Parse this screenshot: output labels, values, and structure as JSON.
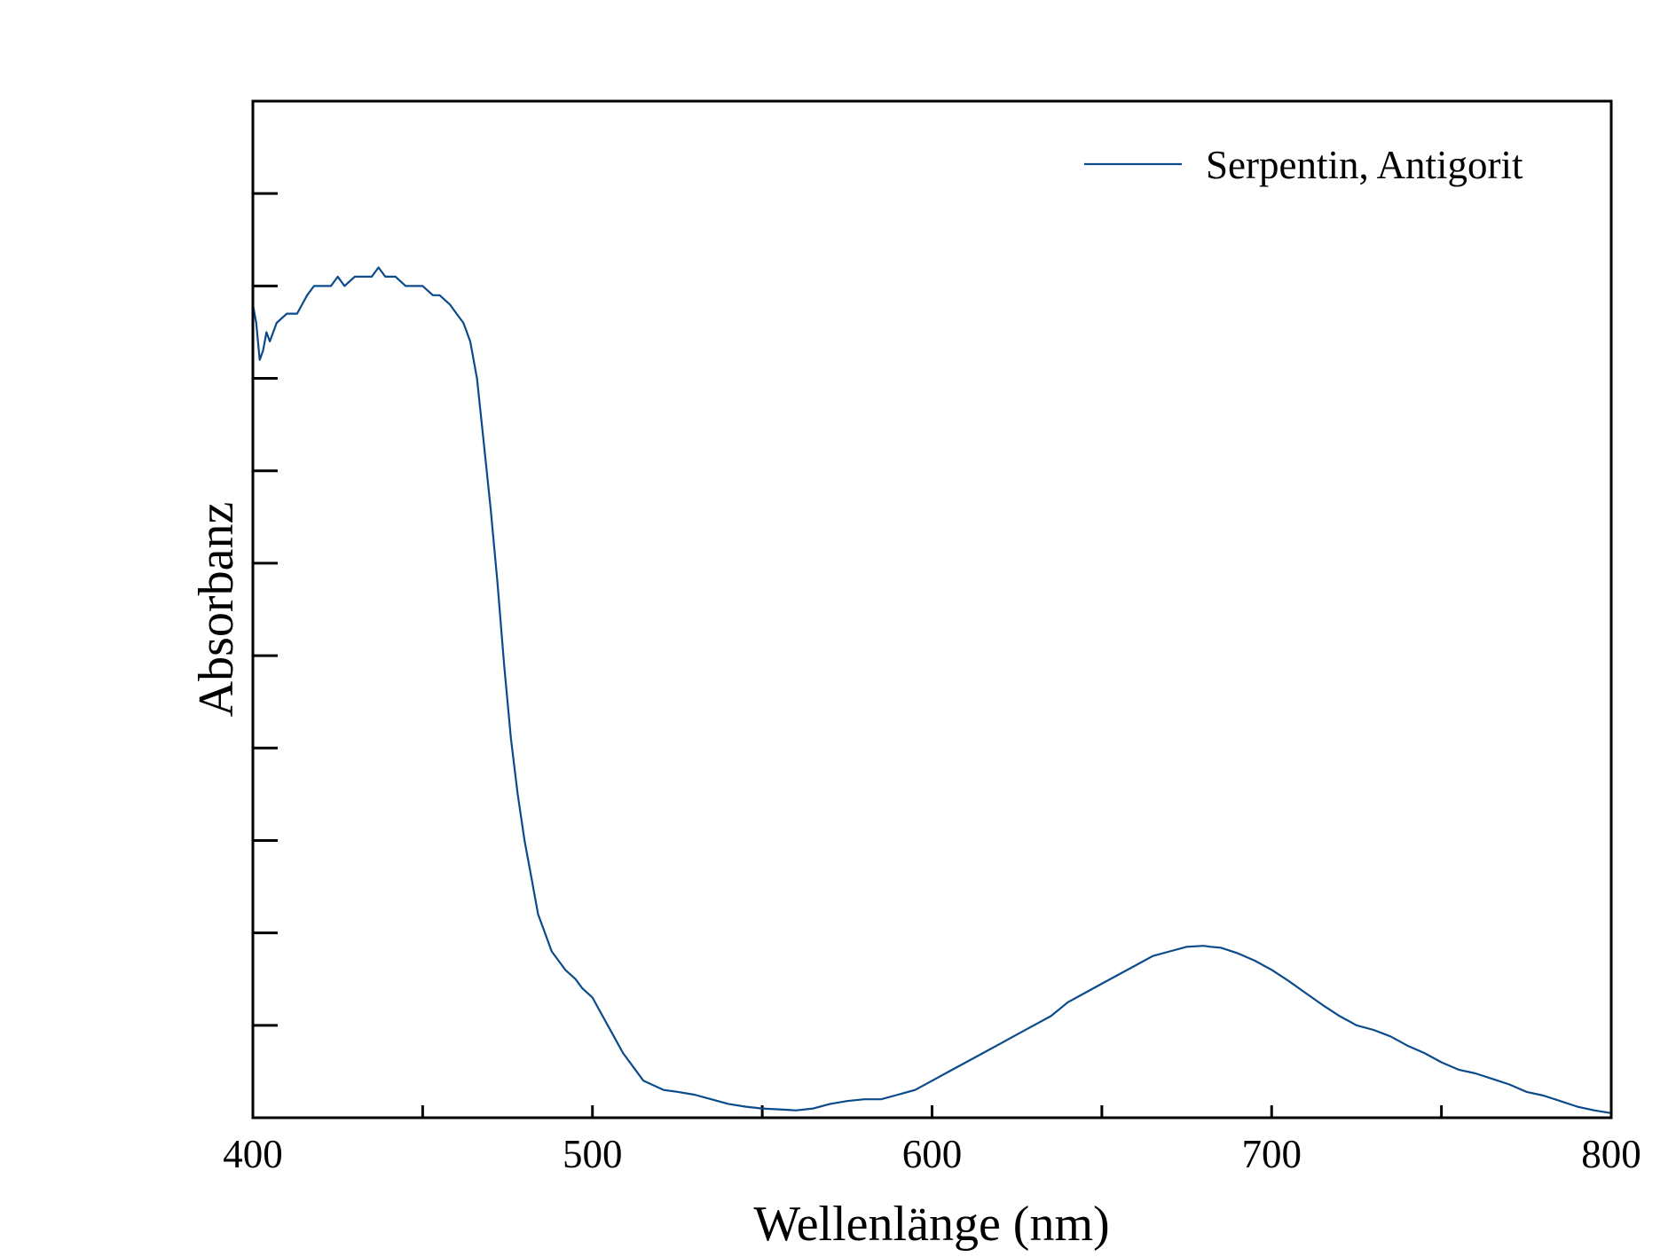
{
  "chart_data": {
    "type": "line",
    "title": "",
    "xlabel": "Wellenlänge (nm)",
    "ylabel": "Absorbanz",
    "xlim": [
      400,
      800
    ],
    "ylim": [
      0,
      1.1
    ],
    "x_ticks": [
      400,
      500,
      600,
      700,
      800
    ],
    "x_tick_labels": [
      "400",
      "500",
      "600",
      "700",
      "800"
    ],
    "x_minor_ticks": [
      450,
      550,
      650,
      750
    ],
    "y_ticks": [
      0.1,
      0.2,
      0.3,
      0.4,
      0.5,
      0.6,
      0.7,
      0.8,
      0.9,
      1.0
    ],
    "y_tick_labels_shown": false,
    "grid": false,
    "legend": {
      "position": "top-right",
      "entries": [
        "Serpentin, Antigorit"
      ]
    },
    "series": [
      {
        "name": "Serpentin, Antigorit",
        "color": "#0b4a8b",
        "x": [
          400,
          401,
          402,
          403,
          404,
          405,
          407,
          410,
          413,
          416,
          418,
          420,
          423,
          425,
          427,
          430,
          433,
          435,
          437,
          439,
          440,
          442,
          445,
          448,
          450,
          453,
          455,
          458,
          460,
          462,
          464,
          466,
          468,
          470,
          472,
          474,
          476,
          478,
          480,
          482,
          484,
          486,
          488,
          490,
          492,
          495,
          497,
          500,
          503,
          506,
          509,
          512,
          515,
          518,
          521,
          525,
          530,
          535,
          540,
          545,
          550,
          555,
          560,
          565,
          570,
          575,
          580,
          585,
          590,
          595,
          600,
          605,
          610,
          615,
          620,
          625,
          630,
          635,
          640,
          645,
          650,
          655,
          660,
          665,
          670,
          675,
          680,
          682,
          685,
          690,
          695,
          700,
          705,
          710,
          715,
          720,
          725,
          730,
          735,
          740,
          745,
          750,
          755,
          760,
          765,
          770,
          775,
          780,
          785,
          790,
          795,
          800
        ],
        "y": [
          0.88,
          0.86,
          0.82,
          0.83,
          0.85,
          0.84,
          0.86,
          0.87,
          0.87,
          0.89,
          0.9,
          0.9,
          0.9,
          0.91,
          0.9,
          0.91,
          0.91,
          0.91,
          0.92,
          0.91,
          0.91,
          0.91,
          0.9,
          0.9,
          0.9,
          0.89,
          0.89,
          0.88,
          0.87,
          0.86,
          0.84,
          0.8,
          0.73,
          0.66,
          0.58,
          0.49,
          0.41,
          0.35,
          0.3,
          0.26,
          0.22,
          0.2,
          0.18,
          0.17,
          0.16,
          0.15,
          0.14,
          0.13,
          0.11,
          0.09,
          0.07,
          0.055,
          0.04,
          0.035,
          0.03,
          0.028,
          0.025,
          0.02,
          0.015,
          0.012,
          0.01,
          0.009,
          0.008,
          0.01,
          0.015,
          0.018,
          0.02,
          0.02,
          0.025,
          0.03,
          0.04,
          0.05,
          0.06,
          0.07,
          0.08,
          0.09,
          0.1,
          0.11,
          0.125,
          0.135,
          0.145,
          0.155,
          0.165,
          0.175,
          0.18,
          0.185,
          0.186,
          0.185,
          0.184,
          0.178,
          0.17,
          0.16,
          0.148,
          0.135,
          0.122,
          0.11,
          0.1,
          0.095,
          0.088,
          0.078,
          0.07,
          0.06,
          0.052,
          0.048,
          0.042,
          0.036,
          0.028,
          0.024,
          0.018,
          0.012,
          0.008,
          0.005
        ]
      }
    ]
  }
}
